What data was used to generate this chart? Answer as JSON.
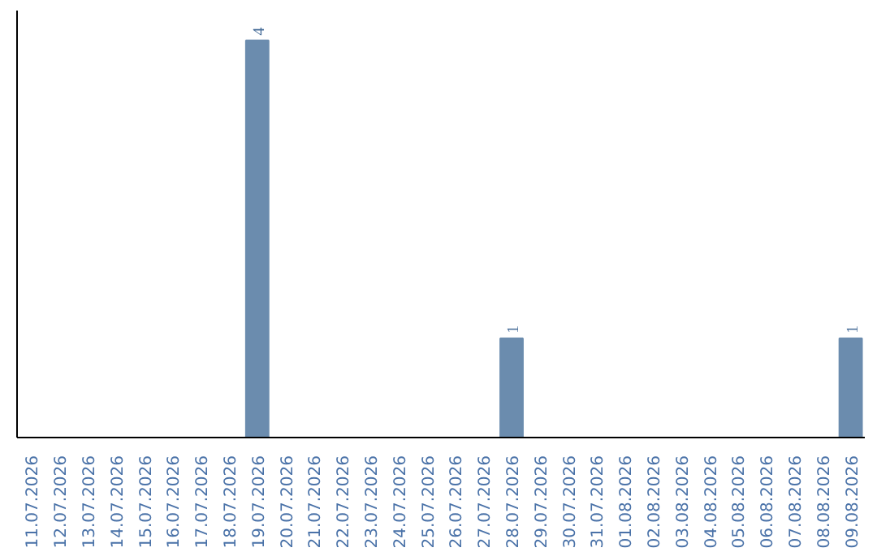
{
  "chart_data": {
    "type": "bar",
    "categories": [
      "11.07.2026",
      "12.07.2026",
      "13.07.2026",
      "14.07.2026",
      "15.07.2026",
      "16.07.2026",
      "17.07.2026",
      "18.07.2026",
      "19.07.2026",
      "20.07.2026",
      "21.07.2026",
      "22.07.2026",
      "23.07.2026",
      "24.07.2026",
      "25.07.2026",
      "26.07.2026",
      "27.07.2026",
      "28.07.2026",
      "29.07.2026",
      "30.07.2026",
      "31.07.2026",
      "01.08.2026",
      "02.08.2026",
      "03.08.2026",
      "04.08.2026",
      "05.08.2026",
      "06.08.2026",
      "07.08.2026",
      "08.08.2026",
      "09.08.2026"
    ],
    "values": [
      0,
      0,
      0,
      0,
      0,
      0,
      0,
      0,
      4,
      0,
      0,
      0,
      0,
      0,
      0,
      0,
      0,
      1,
      0,
      0,
      0,
      0,
      0,
      0,
      0,
      0,
      0,
      0,
      0,
      1
    ],
    "value_labels": [
      null,
      null,
      null,
      null,
      null,
      null,
      null,
      null,
      "4",
      null,
      null,
      null,
      null,
      null,
      null,
      null,
      null,
      "1",
      null,
      null,
      null,
      null,
      null,
      null,
      null,
      null,
      null,
      null,
      null,
      "1"
    ],
    "color": "#6b8cae",
    "ylim": [
      0,
      4.3
    ],
    "tick_labels": "x",
    "grid": false
  }
}
